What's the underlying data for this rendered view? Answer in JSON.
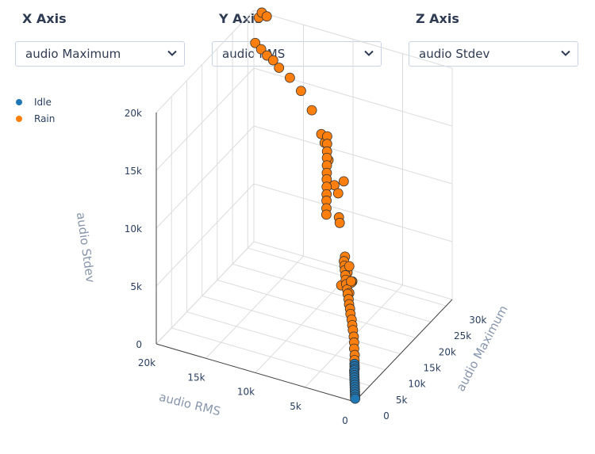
{
  "controls": [
    {
      "label": "X Axis",
      "value": "audio Maximum"
    },
    {
      "label": "Y Axis",
      "value": "audio RMS"
    },
    {
      "label": "Z Axis",
      "value": "audio Stdev"
    }
  ],
  "colors": {
    "idle": "#1f77b4",
    "rain": "#ff7f0e",
    "grid": "#dcdcdc",
    "axis_title": "#8896ad"
  },
  "chart_data": {
    "type": "scatter3d",
    "legend": [
      {
        "name": "Idle",
        "color": "#1f77b4"
      },
      {
        "name": "Rain",
        "color": "#ff7f0e"
      }
    ],
    "axes": {
      "x": {
        "title": "audio Maximum",
        "range": [
          0,
          32000
        ],
        "ticks": [
          "0",
          "5k",
          "10k",
          "15k",
          "20k",
          "25k",
          "30k"
        ]
      },
      "y": {
        "title": "audio RMS",
        "range": [
          0,
          20000
        ],
        "ticks": [
          "0",
          "5k",
          "10k",
          "15k",
          "20k"
        ]
      },
      "z": {
        "title": "audio Stdev",
        "range": [
          0,
          20000
        ],
        "ticks": [
          "0",
          "5k",
          "10k",
          "15k",
          "20k"
        ]
      }
    },
    "series": [
      {
        "name": "Idle",
        "points": [
          [
            500,
            100,
            100
          ],
          [
            800,
            200,
            150
          ],
          [
            1100,
            300,
            250
          ],
          [
            1400,
            400,
            350
          ],
          [
            1700,
            500,
            450
          ],
          [
            2000,
            600,
            550
          ],
          [
            2300,
            700,
            650
          ],
          [
            2600,
            800,
            750
          ],
          [
            2900,
            900,
            850
          ],
          [
            3200,
            1000,
            950
          ],
          [
            3500,
            1100,
            1050
          ],
          [
            3800,
            1200,
            1150
          ],
          [
            4100,
            1300,
            1250
          ],
          [
            4400,
            1350,
            1300
          ],
          [
            4700,
            1450,
            1400
          ],
          [
            5000,
            1550,
            1500
          ]
        ]
      },
      {
        "name": "Rain",
        "points": [
          [
            5500,
            1700,
            1650
          ],
          [
            6200,
            1900,
            1850
          ],
          [
            7000,
            2200,
            2100
          ],
          [
            7800,
            2450,
            2350
          ],
          [
            8500,
            2700,
            2600
          ],
          [
            9200,
            3000,
            2900
          ],
          [
            9800,
            3250,
            3100
          ],
          [
            10400,
            3500,
            3350
          ],
          [
            11000,
            3800,
            3600
          ],
          [
            11500,
            4000,
            3850
          ],
          [
            12000,
            4250,
            4050
          ],
          [
            12500,
            4450,
            4300
          ],
          [
            13000,
            4700,
            4550
          ],
          [
            13500,
            4900,
            4750
          ],
          [
            14000,
            5150,
            5000
          ],
          [
            14500,
            5350,
            5200
          ],
          [
            15000,
            5550,
            5400
          ],
          [
            15500,
            5750,
            5650
          ],
          [
            16000,
            5950,
            5850
          ],
          [
            16500,
            6150,
            6050
          ],
          [
            12800,
            4300,
            5800
          ],
          [
            13200,
            4600,
            4600
          ],
          [
            14200,
            4700,
            5200
          ],
          [
            15800,
            5400,
            6000
          ],
          [
            14800,
            5900,
            4500
          ],
          [
            17000,
            6200,
            6300
          ],
          [
            17500,
            6100,
            4800
          ],
          [
            16800,
            5400,
            4400
          ],
          [
            18000,
            6400,
            5000
          ],
          [
            19000,
            6800,
            4500
          ],
          [
            20000,
            9000,
            8400
          ],
          [
            21000,
            9300,
            8600
          ],
          [
            22000,
            9600,
            8900
          ],
          [
            23000,
            9900,
            9100
          ],
          [
            24000,
            10200,
            9400
          ],
          [
            25000,
            10500,
            9700
          ],
          [
            26000,
            10800,
            9900
          ],
          [
            27000,
            11100,
            10200
          ],
          [
            28000,
            11400,
            10500
          ],
          [
            29000,
            11700,
            10700
          ],
          [
            30000,
            12000,
            11000
          ],
          [
            31000,
            12300,
            11300
          ],
          [
            31500,
            14000,
            13000
          ],
          [
            31200,
            15000,
            14500
          ],
          [
            30800,
            16000,
            15500
          ],
          [
            30500,
            17000,
            16200
          ],
          [
            30200,
            17500,
            16800
          ],
          [
            29800,
            18000,
            17200
          ],
          [
            29500,
            18500,
            17700
          ],
          [
            29200,
            19000,
            18200
          ],
          [
            19200,
            7000,
            12000
          ],
          [
            19500,
            7500,
            8200
          ],
          [
            22500,
            8500,
            7600
          ],
          [
            25500,
            9500,
            8600
          ],
          [
            27500,
            10500,
            8500
          ],
          [
            29800,
            11800,
            9700
          ],
          [
            31800,
            12800,
            10400
          ],
          [
            32000,
            13200,
            11000
          ],
          [
            32000,
            18700,
            19800
          ],
          [
            32000,
            19200,
            20000
          ],
          [
            32000,
            19500,
            19500
          ]
        ]
      }
    ]
  }
}
